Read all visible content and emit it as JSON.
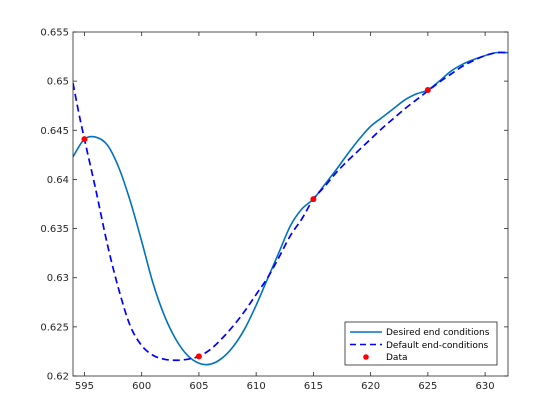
{
  "chart_data": {
    "type": "line",
    "title": "",
    "xlabel": "",
    "ylabel": "",
    "xlim": [
      594,
      632
    ],
    "ylim": [
      0.62,
      0.655
    ],
    "grid": false,
    "legend_position": "bottom-right",
    "x_ticks": [
      595,
      600,
      605,
      610,
      615,
      620,
      625,
      630
    ],
    "x_tick_labels": [
      "595",
      "600",
      "605",
      "610",
      "615",
      "620",
      "625",
      "630"
    ],
    "y_ticks": [
      0.62,
      0.625,
      0.63,
      0.635,
      0.64,
      0.645,
      0.65,
      0.655
    ],
    "y_tick_labels": [
      "0.62",
      "0.625",
      "0.63",
      "0.635",
      "0.64",
      "0.645",
      "0.65",
      "0.655"
    ],
    "colors": {
      "desired": "#0072BD",
      "default": "#0000FF",
      "data": "#FF0000"
    },
    "series": [
      {
        "name": "Desired end conditions",
        "style": "solid",
        "color": "#0072BD",
        "x": [
          594,
          595,
          596,
          597,
          598,
          599,
          600,
          601,
          602,
          603,
          604,
          605,
          606,
          607,
          608,
          609,
          610,
          611,
          612,
          613,
          614,
          615,
          616,
          617,
          618,
          619,
          620,
          621,
          622,
          623,
          624,
          625,
          626,
          627,
          628,
          629,
          630,
          631,
          632
        ],
        "y": [
          0.6423,
          0.6441,
          0.6443,
          0.6435,
          0.6412,
          0.6378,
          0.6337,
          0.6294,
          0.6261,
          0.6237,
          0.6221,
          0.6213,
          0.6212,
          0.6218,
          0.623,
          0.6248,
          0.6272,
          0.6299,
          0.6326,
          0.6353,
          0.637,
          0.638,
          0.6395,
          0.641,
          0.6426,
          0.6441,
          0.6454,
          0.6463,
          0.6472,
          0.6481,
          0.6487,
          0.6491,
          0.65,
          0.651,
          0.6517,
          0.6522,
          0.6526,
          0.6529,
          0.6529
        ]
      },
      {
        "name": "Default end-conditions",
        "style": "dashed",
        "color": "#0000FF",
        "x": [
          594,
          594.5,
          595,
          596,
          597,
          598,
          599,
          600,
          601,
          602,
          603,
          604,
          605,
          606,
          607,
          608,
          609,
          610,
          611,
          612,
          613,
          614,
          615,
          616,
          617,
          618,
          619,
          620,
          621,
          622,
          623,
          624,
          625,
          626,
          627,
          628,
          629,
          630,
          631,
          632
        ],
        "y": [
          0.6498,
          0.6468,
          0.6441,
          0.6389,
          0.6334,
          0.6288,
          0.6251,
          0.6231,
          0.6221,
          0.6217,
          0.6216,
          0.6217,
          0.622,
          0.6227,
          0.6238,
          0.6251,
          0.6266,
          0.6283,
          0.63,
          0.6321,
          0.6343,
          0.636,
          0.638,
          0.6393,
          0.6407,
          0.6419,
          0.643,
          0.6441,
          0.6452,
          0.6462,
          0.6472,
          0.6481,
          0.649,
          0.6499,
          0.6507,
          0.6515,
          0.6521,
          0.6526,
          0.6529,
          0.6529
        ]
      },
      {
        "name": "Data",
        "style": "markers",
        "color": "#FF0000",
        "x": [
          595,
          605,
          615,
          625
        ],
        "y": [
          0.6441,
          0.622,
          0.638,
          0.6491
        ]
      }
    ]
  }
}
